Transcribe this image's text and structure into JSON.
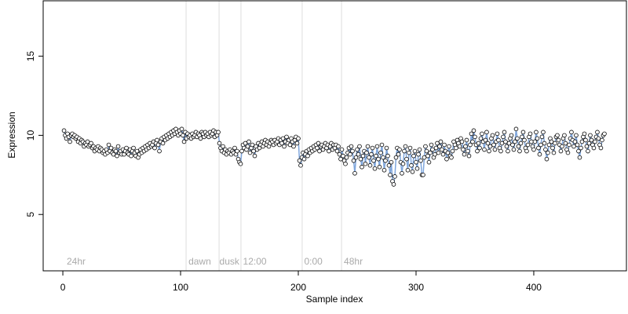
{
  "chart_data": {
    "type": "scatter_line",
    "xlabel": "Sample index",
    "ylabel": "Expression",
    "xlim": [
      -16.7,
      478.7
    ],
    "ylim": [
      1.44,
      18.5
    ],
    "xticks": [
      0,
      100,
      200,
      300,
      400
    ],
    "yticks": [
      5,
      10,
      15
    ],
    "vlines": [
      104.7,
      132.7,
      151.3,
      203.3,
      236.7
    ],
    "annotations": [
      {
        "text": "24hr",
        "x": 3.3,
        "y": 2.0
      },
      {
        "text": "dawn",
        "x": 106.7,
        "y": 2.0
      },
      {
        "text": "dusk",
        "x": 133,
        "y": 2.0
      },
      {
        "text": "12:00",
        "x": 153,
        "y": 2.0
      },
      {
        "text": "0:00",
        "x": 205,
        "y": 2.0
      },
      {
        "text": "48hr",
        "x": 238.7,
        "y": 2.0
      }
    ],
    "line_color": "#7fa6dc",
    "point_fill": "#ffffff",
    "point_stroke": "#000000",
    "x": [
      1,
      2,
      3,
      4,
      5,
      6,
      7,
      8,
      9,
      10,
      11,
      12,
      13,
      14,
      15,
      16,
      17,
      18,
      19,
      20,
      21,
      22,
      23,
      24,
      25,
      26,
      27,
      28,
      29,
      30,
      31,
      32,
      33,
      34,
      35,
      36,
      37,
      38,
      39,
      40,
      41,
      42,
      43,
      44,
      45,
      46,
      47,
      48,
      49,
      50,
      51,
      52,
      53,
      54,
      55,
      56,
      57,
      58,
      59,
      60,
      61,
      62,
      63,
      64,
      65,
      66,
      67,
      68,
      69,
      70,
      71,
      72,
      73,
      74,
      75,
      76,
      77,
      78,
      79,
      80,
      81,
      82,
      83,
      84,
      85,
      86,
      87,
      88,
      89,
      90,
      91,
      92,
      93,
      94,
      95,
      96,
      97,
      98,
      99,
      100,
      101,
      102,
      103,
      104,
      105,
      106,
      107,
      108,
      109,
      110,
      111,
      112,
      113,
      114,
      115,
      116,
      117,
      118,
      119,
      120,
      121,
      122,
      123,
      124,
      125,
      126,
      127,
      128,
      129,
      130,
      131,
      132,
      133,
      134,
      135,
      136,
      137,
      138,
      139,
      140,
      141,
      142,
      143,
      144,
      145,
      146,
      147,
      148,
      149,
      150,
      151,
      152,
      153,
      154,
      155,
      156,
      157,
      158,
      159,
      160,
      161,
      162,
      163,
      164,
      165,
      166,
      167,
      168,
      169,
      170,
      171,
      172,
      173,
      174,
      175,
      176,
      177,
      178,
      179,
      180,
      181,
      182,
      183,
      184,
      185,
      186,
      187,
      188,
      189,
      190,
      191,
      192,
      193,
      194,
      195,
      196,
      197,
      198,
      199,
      200,
      201,
      202,
      203,
      204,
      205,
      206,
      207,
      208,
      209,
      210,
      211,
      212,
      213,
      214,
      215,
      216,
      217,
      218,
      219,
      220,
      221,
      222,
      223,
      224,
      225,
      226,
      227,
      228,
      229,
      230,
      231,
      232,
      233,
      234,
      235,
      236,
      237,
      238,
      239,
      240,
      241,
      242,
      243,
      244,
      245,
      246,
      247,
      248,
      249,
      250,
      251,
      252,
      253,
      254,
      255,
      256,
      257,
      258,
      259,
      260,
      261,
      262,
      263,
      264,
      265,
      266,
      267,
      268,
      269,
      270,
      271,
      272,
      273,
      274,
      275,
      276,
      277,
      278,
      279,
      280,
      281,
      282,
      283,
      284,
      285,
      286,
      287,
      288,
      289,
      290,
      291,
      292,
      293,
      294,
      295,
      296,
      297,
      298,
      299,
      300,
      301,
      302,
      303,
      304,
      305,
      306,
      307,
      308,
      309,
      310,
      311,
      312,
      313,
      314,
      315,
      316,
      317,
      318,
      319,
      320,
      321,
      322,
      323,
      324,
      325,
      326,
      327,
      328,
      329,
      330,
      331,
      332,
      333,
      334,
      335,
      336,
      337,
      338,
      339,
      340,
      341,
      342,
      343,
      344,
      345,
      346,
      347,
      348,
      349,
      350,
      351,
      352,
      353,
      354,
      355,
      356,
      357,
      358,
      359,
      360,
      361,
      362,
      363,
      364,
      365,
      366,
      367,
      368,
      369,
      370,
      371,
      372,
      373,
      374,
      375,
      376,
      377,
      378,
      379,
      380,
      381,
      382,
      383,
      384,
      385,
      386,
      387,
      388,
      389,
      390,
      391,
      392,
      393,
      394,
      395,
      396,
      397,
      398,
      399,
      400,
      401,
      402,
      403,
      404,
      405,
      406,
      407,
      408,
      409,
      410,
      411,
      412,
      413,
      414,
      415,
      416,
      417,
      418,
      419,
      420,
      421,
      422,
      423,
      424,
      425,
      426,
      427,
      428,
      429,
      430,
      431,
      432,
      433,
      434,
      435,
      436,
      437,
      438,
      439,
      440,
      441,
      442,
      443,
      444,
      445,
      446,
      447,
      448,
      449,
      450,
      451,
      452,
      453,
      454,
      455,
      456,
      457,
      458,
      459,
      460
    ],
    "values": [
      10.3,
      10.0,
      9.8,
      10.1,
      9.9,
      9.6,
      10.0,
      10.1,
      9.9,
      10.0,
      9.8,
      9.9,
      9.6,
      9.8,
      9.5,
      9.7,
      9.6,
      9.3,
      9.5,
      9.4,
      9.6,
      9.3,
      9.4,
      9.5,
      9.2,
      9.3,
      9.0,
      9.2,
      9.1,
      9.3,
      9.0,
      9.2,
      9.1,
      8.9,
      9.0,
      8.8,
      9.1,
      8.9,
      9.4,
      9.0,
      9.2,
      8.9,
      8.8,
      9.1,
      9.0,
      8.7,
      9.3,
      8.9,
      9.0,
      8.8,
      9.1,
      8.8,
      9.0,
      9.2,
      8.9,
      8.8,
      9.1,
      8.7,
      9.0,
      9.2,
      8.9,
      8.7,
      9.0,
      8.6,
      8.8,
      9.1,
      8.9,
      9.2,
      9.0,
      9.3,
      9.1,
      9.4,
      9.2,
      9.5,
      9.3,
      9.4,
      9.6,
      9.2,
      9.5,
      9.7,
      9.4,
      9.0,
      9.6,
      9.8,
      9.5,
      9.9,
      9.7,
      10.0,
      9.8,
      10.1,
      9.9,
      10.2,
      10.0,
      10.3,
      10.1,
      10.4,
      10.2,
      10.0,
      10.3,
      10.1,
      10.4,
      10.0,
      9.6,
      10.2,
      9.8,
      10.1,
      9.9,
      10.0,
      9.8,
      10.1,
      9.9,
      10.0,
      10.2,
      9.9,
      10.1,
      10.0,
      9.8,
      10.2,
      10.1,
      9.9,
      10.2,
      10.0,
      10.1,
      9.9,
      10.2,
      10.0,
      10.1,
      10.3,
      9.9,
      10.2,
      10.0,
      10.2,
      9.5,
      9.2,
      9.0,
      9.3,
      8.9,
      9.1,
      8.8,
      9.0,
      8.9,
      9.1,
      8.8,
      9.0,
      8.9,
      9.2,
      8.8,
      9.0,
      8.5,
      8.3,
      8.2,
      9.0,
      9.4,
      9.2,
      9.5,
      9.1,
      9.3,
      9.6,
      8.9,
      9.2,
      9.4,
      9.0,
      8.7,
      9.3,
      9.1,
      9.5,
      9.2,
      9.4,
      9.6,
      9.3,
      9.5,
      9.7,
      9.4,
      9.6,
      9.3,
      9.5,
      9.7,
      9.6,
      9.4,
      9.7,
      9.5,
      9.6,
      9.8,
      9.4,
      9.7,
      9.5,
      9.8,
      9.3,
      9.6,
      9.9,
      9.5,
      9.7,
      9.4,
      9.8,
      9.6,
      9.3,
      9.7,
      9.9,
      9.5,
      9.8,
      8.4,
      8.1,
      8.6,
      8.9,
      8.5,
      8.8,
      9.0,
      8.7,
      9.1,
      8.9,
      9.2,
      9.0,
      9.3,
      9.1,
      9.4,
      9.2,
      9.5,
      9.0,
      9.3,
      9.4,
      9.1,
      9.3,
      9.5,
      9.2,
      9.4,
      9.0,
      9.3,
      9.5,
      9.1,
      9.4,
      9.2,
      9.4,
      9.0,
      9.3,
      8.8,
      8.5,
      9.1,
      8.7,
      8.4,
      8.2,
      8.6,
      8.9,
      9.2,
      8.8,
      9.3,
      9.0,
      8.4,
      7.6,
      8.6,
      9.1,
      8.8,
      9.3,
      8.5,
      8.0,
      8.7,
      9.0,
      8.2,
      8.9,
      9.3,
      8.6,
      8.1,
      8.8,
      9.2,
      8.4,
      7.9,
      8.7,
      9.3,
      8.5,
      8.0,
      8.9,
      9.4,
      8.6,
      7.8,
      8.4,
      9.2,
      8.7,
      8.1,
      7.5,
      8.3,
      7.1,
      6.9,
      7.4,
      8.6,
      9.2,
      8.8,
      9.1,
      8.3,
      7.6,
      8.2,
      9.0,
      9.3,
      8.5,
      7.8,
      8.9,
      9.2,
      8.1,
      7.7,
      8.7,
      9.0,
      8.3,
      7.9,
      8.8,
      9.1,
      8.4,
      7.5,
      7.5,
      8.6,
      9.3,
      9.0,
      8.7,
      8.3,
      8.9,
      9.4,
      9.1,
      8.6,
      8.8,
      9.2,
      9.5,
      8.9,
      9.3,
      9.6,
      9.1,
      8.8,
      9.4,
      9.0,
      8.5,
      8.9,
      9.3,
      8.7,
      8.6,
      9.0,
      9.6,
      9.4,
      9.2,
      9.7,
      9.5,
      9.3,
      9.8,
      9.6,
      9.1,
      8.8,
      9.3,
      9.7,
      9.0,
      8.7,
      9.4,
      10.1,
      9.6,
      10.3,
      9.9,
      9.4,
      9.0,
      9.5,
      9.2,
      9.8,
      10.1,
      9.6,
      9.1,
      9.7,
      10.2,
      9.5,
      9.0,
      9.3,
      9.8,
      10.0,
      9.4,
      9.1,
      9.6,
      10.1,
      9.7,
      9.2,
      9.0,
      9.5,
      9.9,
      10.2,
      9.6,
      9.3,
      9.0,
      9.5,
      9.8,
      10.0,
      9.4,
      9.1,
      9.6,
      10.4,
      9.8,
      9.3,
      9.0,
      9.5,
      9.9,
      10.2,
      9.7,
      9.2,
      9.0,
      9.4,
      9.9,
      10.1,
      9.6,
      9.3,
      9.1,
      9.6,
      10.2,
      9.8,
      9.2,
      8.8,
      9.4,
      9.9,
      10.2,
      9.5,
      9.1,
      8.5,
      8.9,
      9.4,
      9.8,
      9.6,
      9.2,
      8.9,
      9.5,
      9.9,
      10.0,
      9.7,
      9.4,
      9.0,
      9.3,
      9.8,
      10.0,
      9.5,
      9.1,
      8.9,
      9.4,
      9.8,
      10.2,
      9.7,
      9.3,
      9.6,
      10.0,
      9.4,
      9.0,
      8.6,
      9.2,
      9.6,
      9.9,
      10.1,
      9.7,
      9.3,
      9.0,
      9.5,
      10.0,
      9.7,
      9.4,
      9.2,
      9.6,
      9.9,
      10.2,
      9.8,
      9.4,
      9.2,
      9.7,
      10.0,
      10.1
    ]
  }
}
